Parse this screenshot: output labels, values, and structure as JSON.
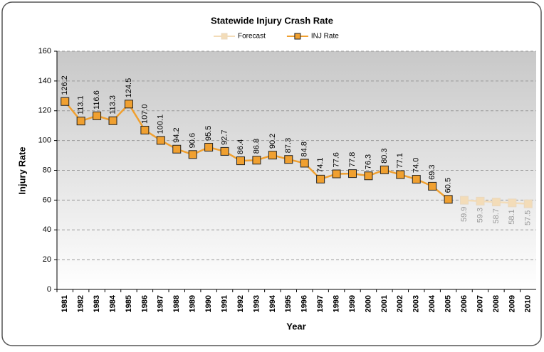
{
  "chart_data": {
    "type": "line",
    "title": "Statewide Injury Crash Rate",
    "x_label": "Year",
    "y_label": "Injury Rate",
    "categories": [
      "1981",
      "1982",
      "1983",
      "1984",
      "1985",
      "1986",
      "1987",
      "1988",
      "1989",
      "1990",
      "1991",
      "1992",
      "1993",
      "1994",
      "1995",
      "1996",
      "1997",
      "1998",
      "1999",
      "2000",
      "2001",
      "2002",
      "2003",
      "2004",
      "2005",
      "2006",
      "2007",
      "2008",
      "2009",
      "2010"
    ],
    "series": [
      {
        "name": "Forecast",
        "color": "#f3dcb8",
        "values": [
          null,
          null,
          null,
          null,
          null,
          null,
          null,
          null,
          null,
          null,
          null,
          null,
          null,
          null,
          null,
          null,
          null,
          null,
          null,
          null,
          null,
          null,
          null,
          null,
          null,
          59.9,
          59.3,
          58.7,
          58.1,
          57.5
        ],
        "value_labels": [
          null,
          null,
          null,
          null,
          null,
          null,
          null,
          null,
          null,
          null,
          null,
          null,
          null,
          null,
          null,
          null,
          null,
          null,
          null,
          null,
          null,
          null,
          null,
          null,
          null,
          "59.9",
          "59.3",
          "58.7",
          "58.1",
          "57.5"
        ]
      },
      {
        "name": "INJ Rate",
        "color": "#f0a030",
        "values": [
          126.2,
          113.1,
          116.6,
          113.3,
          124.5,
          107.0,
          100.1,
          94.2,
          90.6,
          95.5,
          92.7,
          86.4,
          86.8,
          90.2,
          87.3,
          84.8,
          74.1,
          77.6,
          77.8,
          76.3,
          80.3,
          77.1,
          74.0,
          69.3,
          60.5,
          null,
          null,
          null,
          null,
          null
        ],
        "value_labels": [
          "126.2",
          "113.1",
          "116.6",
          "113.3",
          "124.5",
          "107.0",
          "100.1",
          "94.2",
          "90.6",
          "95.5",
          "92.7",
          "86.4",
          "86.8",
          "90.2",
          "87.3",
          "84.8",
          "74.1",
          "77.6",
          "77.8",
          "76.3",
          "80.3",
          "77.1",
          "74.0",
          "69.3",
          "60.5",
          null,
          null,
          null,
          null,
          null
        ]
      }
    ],
    "ylim": [
      0,
      160
    ],
    "yticks": [
      0,
      20,
      40,
      60,
      80,
      100,
      120,
      140,
      160
    ],
    "grid": true,
    "legend": "top"
  }
}
